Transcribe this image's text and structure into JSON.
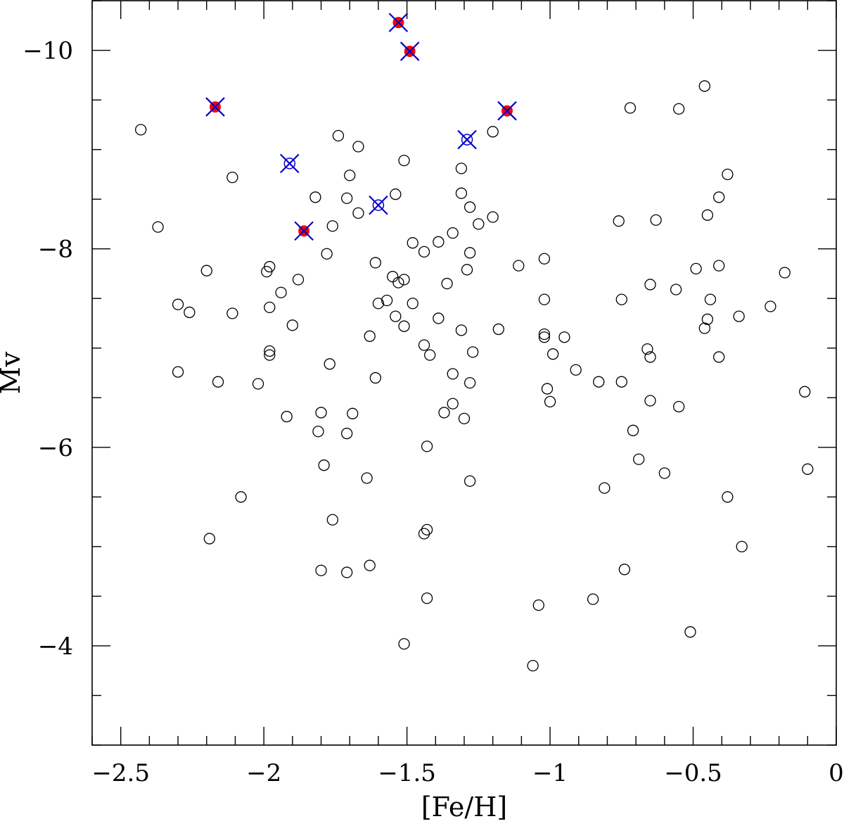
{
  "chart_data": {
    "type": "scatter",
    "xlabel": "[Fe/H]",
    "ylabel": "Mv",
    "xlim": [
      -2.6,
      0
    ],
    "ylim": [
      -3.0,
      -10.5
    ],
    "y_inverted": true,
    "x_major_ticks": [
      -2.5,
      -2,
      -1.5,
      -1,
      -0.5,
      0
    ],
    "x_minor_step": 0.1,
    "x_tick_labels": [
      "−2.5",
      "−2",
      "−1.5",
      "−1",
      "−0.5",
      "0"
    ],
    "y_major_ticks": [
      -10,
      -8,
      -6,
      -4
    ],
    "y_minor_step": 0.5,
    "y_tick_labels": [
      "−10",
      "−8",
      "−6",
      "−4"
    ],
    "grid": false,
    "colors": {
      "open": "#000000",
      "filled": "#ff0000",
      "cross": "#0000cc"
    },
    "series": [
      {
        "marker": "open-circle",
        "points": [
          [
            -2.43,
            -9.2
          ],
          [
            -2.37,
            -8.22
          ],
          [
            -2.3,
            -7.44
          ],
          [
            -2.26,
            -7.36
          ],
          [
            -2.3,
            -6.76
          ],
          [
            -2.2,
            -7.78
          ],
          [
            -2.16,
            -6.66
          ],
          [
            -2.11,
            -8.72
          ],
          [
            -2.11,
            -7.35
          ],
          [
            -2.08,
            -5.5
          ],
          [
            -2.19,
            -5.08
          ],
          [
            -2.02,
            -6.64
          ],
          [
            -1.99,
            -7.77
          ],
          [
            -1.98,
            -7.82
          ],
          [
            -1.98,
            -7.41
          ],
          [
            -1.98,
            -6.97
          ],
          [
            -1.98,
            -6.93
          ],
          [
            -1.94,
            -7.56
          ],
          [
            -1.92,
            -6.31
          ],
          [
            -1.9,
            -7.23
          ],
          [
            -1.88,
            -7.69
          ],
          [
            -1.82,
            -8.52
          ],
          [
            -1.81,
            -6.16
          ],
          [
            -1.8,
            -6.35
          ],
          [
            -1.79,
            -5.82
          ],
          [
            -1.8,
            -4.76
          ],
          [
            -1.78,
            -7.95
          ],
          [
            -1.77,
            -6.84
          ],
          [
            -1.76,
            -8.23
          ],
          [
            -1.76,
            -5.27
          ],
          [
            -1.74,
            -9.14
          ],
          [
            -1.71,
            -8.51
          ],
          [
            -1.71,
            -6.14
          ],
          [
            -1.71,
            -4.74
          ],
          [
            -1.7,
            -8.74
          ],
          [
            -1.69,
            -6.34
          ],
          [
            -1.67,
            -9.03
          ],
          [
            -1.67,
            -8.36
          ],
          [
            -1.64,
            -5.69
          ],
          [
            -1.63,
            -7.12
          ],
          [
            -1.63,
            -4.81
          ],
          [
            -1.61,
            -7.86
          ],
          [
            -1.61,
            -6.7
          ],
          [
            -1.6,
            -7.45
          ],
          [
            -1.57,
            -7.48
          ],
          [
            -1.55,
            -7.72
          ],
          [
            -1.54,
            -8.55
          ],
          [
            -1.54,
            -7.32
          ],
          [
            -1.53,
            -7.66
          ],
          [
            -1.51,
            -8.89
          ],
          [
            -1.51,
            -7.69
          ],
          [
            -1.51,
            -7.22
          ],
          [
            -1.51,
            -4.02
          ],
          [
            -1.48,
            -8.06
          ],
          [
            -1.48,
            -7.45
          ],
          [
            -1.44,
            -7.97
          ],
          [
            -1.44,
            -7.03
          ],
          [
            -1.43,
            -6.01
          ],
          [
            -1.43,
            -5.17
          ],
          [
            -1.43,
            -4.48
          ],
          [
            -1.42,
            -6.93
          ],
          [
            -1.44,
            -5.13
          ],
          [
            -1.39,
            -8.07
          ],
          [
            -1.39,
            -7.3
          ],
          [
            -1.36,
            -7.65
          ],
          [
            -1.37,
            -6.35
          ],
          [
            -1.34,
            -8.16
          ],
          [
            -1.34,
            -6.74
          ],
          [
            -1.34,
            -6.44
          ],
          [
            -1.31,
            -8.81
          ],
          [
            -1.31,
            -8.56
          ],
          [
            -1.31,
            -7.18
          ],
          [
            -1.3,
            -6.29
          ],
          [
            -1.29,
            -7.79
          ],
          [
            -1.28,
            -8.42
          ],
          [
            -1.28,
            -7.96
          ],
          [
            -1.28,
            -6.65
          ],
          [
            -1.28,
            -5.66
          ],
          [
            -1.27,
            -6.96
          ],
          [
            -1.25,
            -8.25
          ],
          [
            -1.2,
            -9.18
          ],
          [
            -1.2,
            -8.32
          ],
          [
            -1.18,
            -7.19
          ],
          [
            -1.11,
            -7.83
          ],
          [
            -1.02,
            -7.9
          ],
          [
            -1.02,
            -7.49
          ],
          [
            -1.02,
            -7.14
          ],
          [
            -1.02,
            -7.11
          ],
          [
            -1.01,
            -6.59
          ],
          [
            -1.0,
            -6.46
          ],
          [
            -0.99,
            -6.94
          ],
          [
            -1.04,
            -4.41
          ],
          [
            -1.06,
            -3.8
          ],
          [
            -0.95,
            -7.11
          ],
          [
            -0.91,
            -6.78
          ],
          [
            -0.83,
            -6.66
          ],
          [
            -0.85,
            -4.47
          ],
          [
            -0.81,
            -5.59
          ],
          [
            -0.76,
            -8.28
          ],
          [
            -0.75,
            -7.49
          ],
          [
            -0.75,
            -6.66
          ],
          [
            -0.74,
            -4.77
          ],
          [
            -0.72,
            -9.42
          ],
          [
            -0.71,
            -6.17
          ],
          [
            -0.69,
            -5.88
          ],
          [
            -0.66,
            -6.99
          ],
          [
            -0.65,
            -6.91
          ],
          [
            -0.65,
            -6.47
          ],
          [
            -0.65,
            -7.64
          ],
          [
            -0.63,
            -8.29
          ],
          [
            -0.6,
            -5.74
          ],
          [
            -0.56,
            -7.59
          ],
          [
            -0.55,
            -9.41
          ],
          [
            -0.55,
            -6.41
          ],
          [
            -0.49,
            -7.8
          ],
          [
            -0.51,
            -4.14
          ],
          [
            -0.46,
            -9.64
          ],
          [
            -0.45,
            -8.34
          ],
          [
            -0.45,
            -7.29
          ],
          [
            -0.46,
            -7.2
          ],
          [
            -0.44,
            -7.49
          ],
          [
            -0.41,
            -8.52
          ],
          [
            -0.41,
            -7.83
          ],
          [
            -0.41,
            -6.91
          ],
          [
            -0.38,
            -8.75
          ],
          [
            -0.38,
            -5.5
          ],
          [
            -0.34,
            -7.32
          ],
          [
            -0.33,
            -5.0
          ],
          [
            -0.23,
            -7.42
          ],
          [
            -0.18,
            -7.76
          ],
          [
            -0.11,
            -6.56
          ],
          [
            -0.1,
            -5.78
          ]
        ]
      },
      {
        "marker": "open-circle-cross",
        "points": [
          [
            -1.91,
            -8.86
          ],
          [
            -1.6,
            -8.44
          ],
          [
            -1.29,
            -9.1
          ]
        ]
      },
      {
        "marker": "filled-circle-cross",
        "points": [
          [
            -2.17,
            -9.43
          ],
          [
            -1.86,
            -8.18
          ],
          [
            -1.53,
            -10.28
          ],
          [
            -1.49,
            -9.99
          ],
          [
            -1.15,
            -9.39
          ]
        ]
      }
    ]
  }
}
